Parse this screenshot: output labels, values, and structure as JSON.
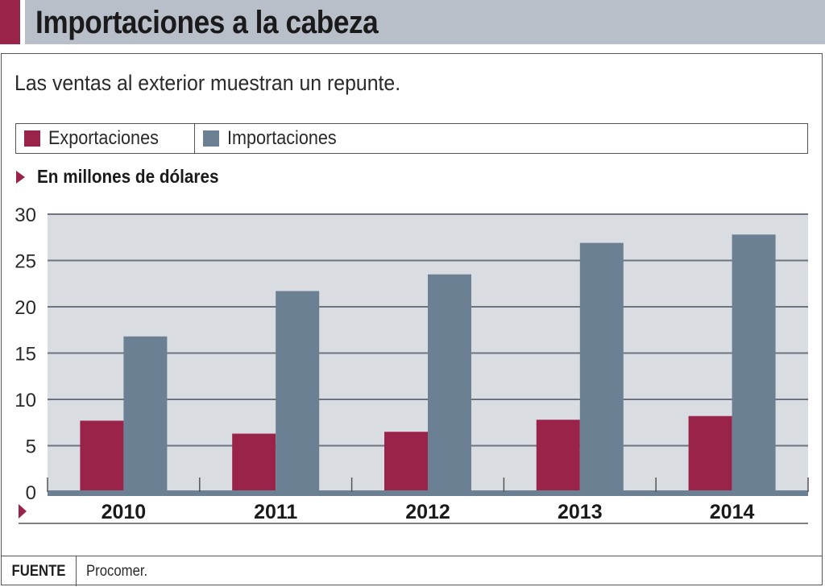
{
  "header": {
    "title": "Importaciones a la cabeza",
    "subtitle": "Las ventas al exterior muestran un repunte.",
    "unit_label": "En millones de dólares"
  },
  "colors": {
    "accent": "#9a2349",
    "exportaciones": "#9a2349",
    "importaciones": "#6b8092",
    "plot_bg": "#d9dce1",
    "title_bg": "#b8bfc9",
    "gridline": "#6b7480"
  },
  "legend": [
    {
      "label": "Exportaciones",
      "color": "#9a2349"
    },
    {
      "label": "Importaciones",
      "color": "#6b8092"
    }
  ],
  "footer": {
    "key": "FUENTE",
    "value": "Procomer."
  },
  "chart_data": {
    "type": "bar",
    "title": "Importaciones a la cabeza",
    "subtitle": "Las ventas al exterior muestran un repunte.",
    "xlabel": "",
    "ylabel": "En millones de dólares",
    "categories": [
      "2010",
      "2011",
      "2012",
      "2013",
      "2014"
    ],
    "series": [
      {
        "name": "Exportaciones",
        "values": [
          7.7,
          6.3,
          6.5,
          7.8,
          8.2
        ]
      },
      {
        "name": "Importaciones",
        "values": [
          16.8,
          21.7,
          23.5,
          26.9,
          27.8
        ]
      }
    ],
    "ylim": [
      0,
      30
    ],
    "yticks": [
      0,
      5,
      10,
      15,
      20,
      25,
      30
    ],
    "grid": true,
    "legend_position": "top"
  }
}
